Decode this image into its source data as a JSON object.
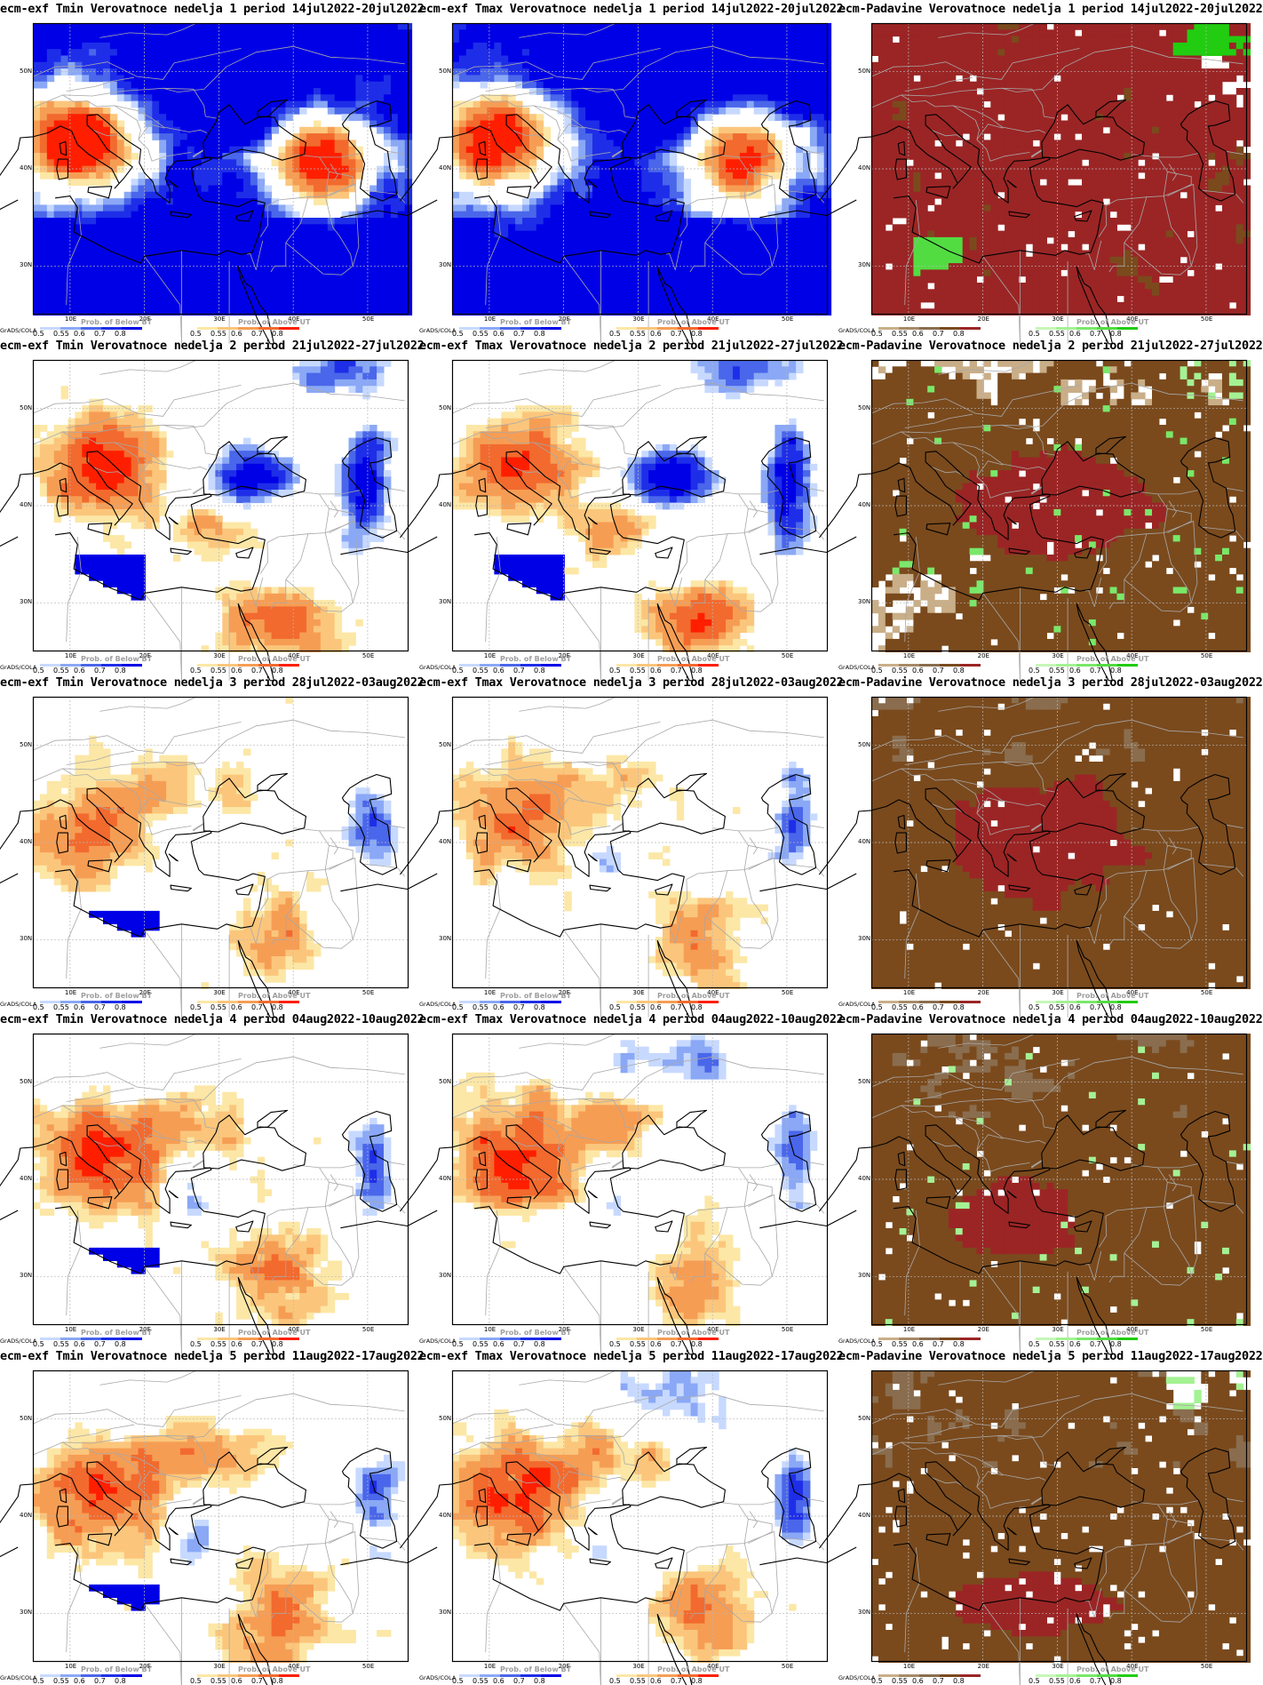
{
  "grads_tag": "GrADS/COLA",
  "lat_labels": [
    "50N",
    "40N",
    "30N"
  ],
  "lon_labels": [
    "10E",
    "20E",
    "30E",
    "40E",
    "50E"
  ],
  "colors": {
    "blue_scale": [
      "#c7d9ff",
      "#8aa8f5",
      "#4a66ea",
      "#1e2ee8",
      "#0000e6"
    ],
    "warm_scale": [
      "#fce7a6",
      "#fbc67c",
      "#f69d54",
      "#f26a2e",
      "#ff1f00"
    ],
    "brown_scale": [
      "#c9ae88",
      "#a68a66",
      "#8a6d4e",
      "#7a4a1d",
      "#9b2525"
    ],
    "green_scale": [
      "#c6f7b8",
      "#a4f294",
      "#7ae86a",
      "#52dc42",
      "#22cc11"
    ],
    "border": "#a8a8a8",
    "coast": "#000000",
    "gridline": "#b8b8b8"
  },
  "colorbars": {
    "temp": {
      "left_title": "Prob. of Below BT",
      "left_labels": [
        "0.5",
        "0.55",
        "0.6",
        "0.7",
        "0.8"
      ],
      "right_title": "Prob. of Above UT",
      "right_labels": [
        "0.5",
        "0.55",
        "0.6",
        "0.7",
        "0.8"
      ]
    },
    "precip": {
      "left_title": "",
      "left_labels": [
        "0.5",
        "0.55",
        "0.6",
        "0.7",
        "0.8"
      ],
      "right_title": "Prob. of Above UT",
      "right_labels": [
        "0.5",
        "0.55",
        "0.6",
        "0.7",
        "0.8"
      ]
    }
  },
  "rows": [
    {
      "week": 1,
      "titles": [
        "ecm-exf Tmin Verovatnoce nedelja 1 period 14jul2022-20jul2022",
        "ecm-exf Tmax Verovatnoce nedelja 1 period 14jul2022-20jul2022",
        "ecm-Padavine Verovatnoce nedelja 1 period 14jul2022-20jul2022"
      ]
    },
    {
      "week": 2,
      "titles": [
        "ecm-exf Tmin Verovatnoce nedelja 2 period 21jul2022-27jul2022",
        "ecm-exf Tmax Verovatnoce nedelja 2 period 21jul2022-27jul2022",
        "ecm-Padavine Verovatnoce nedelja 2 period 21jul2022-27jul2022"
      ]
    },
    {
      "week": 3,
      "titles": [
        "ecm-exf Tmin Verovatnoce nedelja 3 period 28jul2022-03aug2022",
        "ecm-exf Tmax Verovatnoce nedelja 3 period 28jul2022-03aug2022",
        "ecm-Padavine Verovatnoce nedelja 3 period 28jul2022-03aug2022"
      ]
    },
    {
      "week": 4,
      "titles": [
        "ecm-exf Tmin Verovatnoce nedelja 4 period 04aug2022-10aug2022",
        "ecm-exf Tmax Verovatnoce nedelja 4 period 04aug2022-10aug2022",
        "ecm-Padavine Verovatnoce nedelja 4 period 04aug2022-10aug2022"
      ]
    },
    {
      "week": 5,
      "titles": [
        "ecm-exf Tmin Verovatnoce nedelja 5 period 11aug2022-17aug2022",
        "ecm-exf Tmax Verovatnoce nedelja 5 period 11aug2022-17aug2022",
        "ecm-Padavine Verovatnoce nedelja 5 period 11aug2022-17aug2022"
      ]
    }
  ]
}
